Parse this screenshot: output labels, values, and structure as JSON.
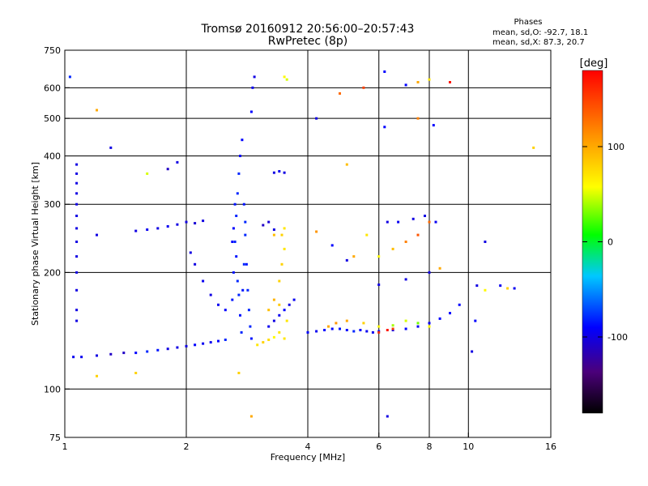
{
  "chart_data": {
    "type": "scatter",
    "title": "Tromsø 20160912 20:56:00–20:57:43",
    "subtitle": "RwPretec (8p)",
    "xlabel": "Frequency [MHz]",
    "ylabel": "Stationary phase Virtual Height [km]",
    "x_scale": "log",
    "y_scale": "log",
    "xlim": [
      1,
      16
    ],
    "ylim": [
      75,
      750
    ],
    "x_ticks": [
      1,
      2,
      4,
      6,
      8,
      10,
      16
    ],
    "y_ticks": [
      75,
      100,
      200,
      300,
      400,
      500,
      600,
      750
    ],
    "grid_x": [
      2,
      4,
      6,
      8,
      10
    ],
    "grid_y": [
      100,
      200,
      300,
      400,
      500,
      600
    ],
    "grid": true,
    "legend": {
      "title": "Phases",
      "lines": [
        "mean, sd,O: -92.7, 18.1",
        "mean, sd,X: 87.3, 20.7"
      ]
    },
    "colorbar": {
      "label": "[deg]",
      "range": [
        -180,
        180
      ],
      "ticks": [
        100,
        0,
        -100
      ],
      "colormap": "rainbow"
    },
    "series": [
      {
        "points": [
          [
            1.05,
            121,
            -95
          ],
          [
            1.1,
            121,
            -95
          ],
          [
            1.2,
            122,
            -100
          ],
          [
            1.3,
            123,
            -110
          ],
          [
            1.4,
            124,
            -110
          ],
          [
            1.5,
            124,
            -90
          ],
          [
            1.6,
            125,
            -80
          ],
          [
            1.7,
            126,
            -85
          ],
          [
            1.8,
            127,
            -100
          ],
          [
            1.9,
            128,
            -100
          ],
          [
            2.0,
            129,
            -100
          ],
          [
            2.1,
            130,
            -90
          ],
          [
            2.2,
            131,
            -95
          ],
          [
            2.3,
            132,
            -95
          ],
          [
            2.4,
            133,
            -90
          ],
          [
            2.5,
            134,
            -80
          ],
          [
            1.07,
            380,
            -100
          ],
          [
            1.07,
            360,
            -100
          ],
          [
            1.07,
            340,
            -100
          ],
          [
            1.07,
            320,
            -100
          ],
          [
            1.07,
            300,
            -100
          ],
          [
            1.07,
            280,
            -100
          ],
          [
            1.07,
            260,
            -100
          ],
          [
            1.07,
            240,
            -100
          ],
          [
            1.07,
            220,
            -100
          ],
          [
            1.07,
            200,
            -100
          ],
          [
            1.07,
            180,
            -100
          ],
          [
            1.07,
            160,
            -100
          ],
          [
            1.07,
            150,
            -100
          ],
          [
            1.5,
            256,
            -100
          ],
          [
            1.6,
            258,
            -95
          ],
          [
            1.7,
            260,
            -100
          ],
          [
            1.8,
            263,
            -95
          ],
          [
            1.9,
            266,
            -100
          ],
          [
            2.0,
            270,
            -100
          ],
          [
            2.1,
            268,
            -105
          ],
          [
            2.2,
            272,
            -100
          ],
          [
            2.05,
            225,
            -100
          ],
          [
            2.1,
            210,
            -100
          ],
          [
            2.2,
            190,
            -95
          ],
          [
            2.3,
            175,
            -100
          ],
          [
            2.4,
            165,
            -95
          ],
          [
            2.5,
            160,
            -90
          ],
          [
            2.6,
            170,
            -85
          ],
          [
            2.62,
            200,
            -85
          ],
          [
            2.64,
            240,
            -80
          ],
          [
            2.66,
            280,
            -80
          ],
          [
            2.68,
            320,
            -80
          ],
          [
            2.7,
            360,
            -80
          ],
          [
            2.72,
            400,
            -90
          ],
          [
            2.75,
            440,
            -90
          ],
          [
            2.78,
            300,
            -85
          ],
          [
            2.8,
            250,
            -80
          ],
          [
            2.82,
            210,
            -85
          ],
          [
            2.84,
            180,
            -80
          ],
          [
            2.86,
            160,
            -80
          ],
          [
            2.88,
            145,
            -80
          ],
          [
            2.9,
            135,
            -85
          ],
          [
            2.6,
            240,
            -90
          ],
          [
            2.62,
            260,
            -90
          ],
          [
            2.64,
            300,
            -85
          ],
          [
            2.66,
            220,
            -85
          ],
          [
            2.68,
            190,
            -80
          ],
          [
            2.7,
            175,
            -80
          ],
          [
            2.72,
            155,
            -85
          ],
          [
            2.74,
            140,
            -80
          ],
          [
            2.76,
            180,
            -85
          ],
          [
            2.78,
            210,
            -80
          ],
          [
            2.8,
            270,
            -80
          ],
          [
            2.9,
            520,
            -90
          ],
          [
            2.92,
            600,
            -95
          ],
          [
            2.95,
            640,
            -100
          ],
          [
            3.0,
            130,
            70
          ],
          [
            3.1,
            132,
            80
          ],
          [
            3.2,
            134,
            75
          ],
          [
            3.3,
            136,
            60
          ],
          [
            3.4,
            140,
            70
          ],
          [
            3.5,
            135,
            70
          ],
          [
            3.2,
            160,
            90
          ],
          [
            3.3,
            170,
            95
          ],
          [
            3.4,
            190,
            80
          ],
          [
            3.45,
            210,
            80
          ],
          [
            3.5,
            230,
            70
          ],
          [
            3.45,
            250,
            80
          ],
          [
            3.3,
            250,
            90
          ],
          [
            3.5,
            260,
            70
          ],
          [
            3.4,
            165,
            85
          ],
          [
            3.55,
            150,
            70
          ],
          [
            3.5,
            640,
            60
          ],
          [
            3.55,
            630,
            50
          ],
          [
            3.2,
            145,
            -95
          ],
          [
            3.3,
            150,
            -100
          ],
          [
            3.4,
            155,
            -95
          ],
          [
            3.5,
            160,
            -90
          ],
          [
            3.6,
            165,
            -100
          ],
          [
            3.7,
            170,
            -95
          ],
          [
            3.3,
            362,
            -100
          ],
          [
            3.4,
            365,
            -95
          ],
          [
            3.5,
            362,
            -100
          ],
          [
            3.1,
            265,
            -110
          ],
          [
            3.2,
            270,
            -105
          ],
          [
            3.3,
            258,
            -100
          ],
          [
            4.0,
            140,
            -90
          ],
          [
            4.2,
            141,
            -95
          ],
          [
            4.4,
            142,
            -90
          ],
          [
            4.6,
            143,
            -90
          ],
          [
            4.8,
            143,
            -85
          ],
          [
            5.0,
            142,
            -90
          ],
          [
            5.2,
            141,
            -80
          ],
          [
            5.4,
            142,
            -90
          ],
          [
            5.6,
            141,
            -95
          ],
          [
            5.8,
            140,
            -95
          ],
          [
            6.0,
            141,
            -85
          ],
          [
            6.5,
            142,
            -90
          ],
          [
            7.0,
            143,
            -90
          ],
          [
            7.5,
            145,
            -95
          ],
          [
            8.0,
            148,
            -95
          ],
          [
            8.5,
            152,
            -90
          ],
          [
            9.0,
            157,
            -90
          ],
          [
            9.5,
            165,
            -90
          ],
          [
            4.5,
            145,
            100
          ],
          [
            4.7,
            148,
            110
          ],
          [
            5.0,
            150,
            100
          ],
          [
            5.5,
            148,
            80
          ],
          [
            6.0,
            145,
            60
          ],
          [
            6.5,
            146,
            40
          ],
          [
            7.0,
            150,
            50
          ],
          [
            7.5,
            148,
            30
          ],
          [
            8.0,
            145,
            60
          ],
          [
            6.0,
            140,
            160
          ],
          [
            6.3,
            142,
            170
          ],
          [
            6.5,
            143,
            150
          ],
          [
            4.8,
            580,
            130
          ],
          [
            5.5,
            600,
            150
          ],
          [
            6.2,
            660,
            -90
          ],
          [
            7.0,
            610,
            -90
          ],
          [
            7.5,
            620,
            100
          ],
          [
            8.0,
            630,
            70
          ],
          [
            9.0,
            620,
            170
          ],
          [
            6.2,
            475,
            -90
          ],
          [
            7.5,
            500,
            120
          ],
          [
            8.2,
            480,
            -90
          ],
          [
            5.2,
            220,
            100
          ],
          [
            5.6,
            250,
            70
          ],
          [
            6.3,
            270,
            -100
          ],
          [
            6.7,
            270,
            -95
          ],
          [
            7.3,
            275,
            -100
          ],
          [
            7.8,
            280,
            -100
          ],
          [
            8.0,
            270,
            130
          ],
          [
            8.3,
            270,
            -95
          ],
          [
            6.0,
            220,
            60
          ],
          [
            6.5,
            230,
            90
          ],
          [
            7.0,
            240,
            120
          ],
          [
            7.5,
            250,
            140
          ],
          [
            4.2,
            255,
            110
          ],
          [
            4.6,
            235,
            -90
          ],
          [
            5.0,
            215,
            -100
          ],
          [
            6.0,
            186,
            -100
          ],
          [
            7.0,
            192,
            -100
          ],
          [
            8.0,
            200,
            -100
          ],
          [
            8.5,
            205,
            100
          ],
          [
            10.5,
            185,
            -100
          ],
          [
            11.0,
            180,
            60
          ],
          [
            12.0,
            185,
            -95
          ],
          [
            12.5,
            182,
            80
          ],
          [
            13.0,
            182,
            -95
          ],
          [
            11.0,
            240,
            -100
          ],
          [
            14.5,
            420,
            80
          ],
          [
            10.2,
            125,
            -100
          ],
          [
            10.4,
            150,
            -90
          ],
          [
            6.3,
            85,
            -100
          ],
          [
            2.7,
            110,
            80
          ],
          [
            2.9,
            85,
            100
          ],
          [
            1.2,
            108,
            80
          ],
          [
            1.5,
            110,
            80
          ],
          [
            1.3,
            420,
            -100
          ],
          [
            1.2,
            525,
            100
          ],
          [
            1.03,
            640,
            -80
          ],
          [
            1.6,
            360,
            50
          ],
          [
            1.8,
            370,
            -110
          ],
          [
            1.9,
            385,
            -100
          ],
          [
            1.2,
            250,
            -100
          ],
          [
            4.2,
            500,
            -100
          ],
          [
            5.0,
            380,
            90
          ]
        ]
      }
    ]
  }
}
